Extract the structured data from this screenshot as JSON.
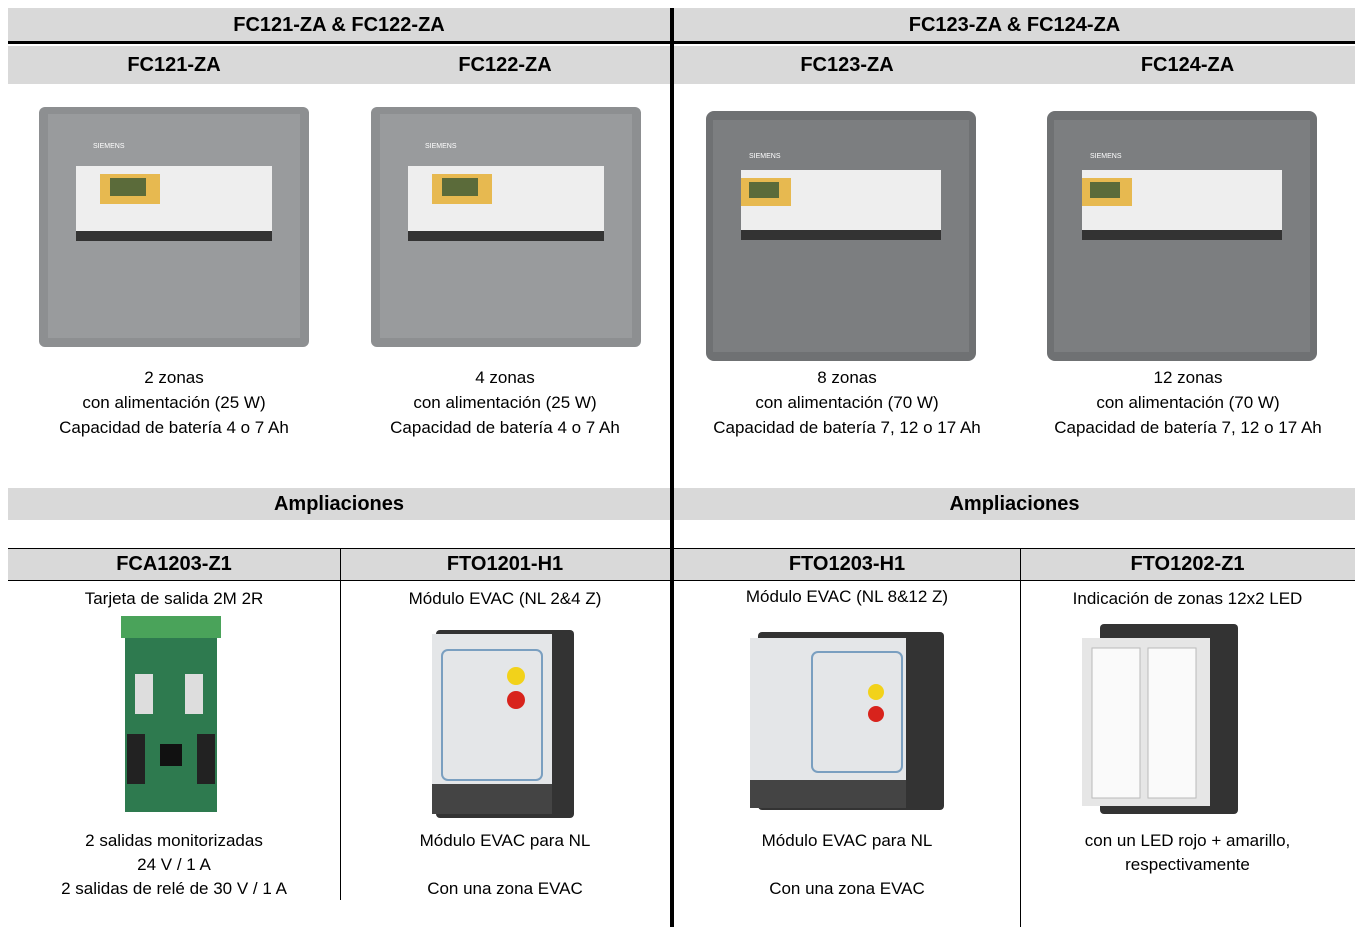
{
  "sections": [
    {
      "title": "FC121-ZA & FC122-ZA",
      "models": [
        {
          "name": "FC121-ZA",
          "lines": [
            "2 zonas",
            "con alimentación (25 W)",
            "Capacidad de batería 4 o 7 Ah"
          ]
        },
        {
          "name": "FC122-ZA",
          "lines": [
            "4 zonas",
            "con alimentación (25 W)",
            "Capacidad de batería 4 o 7 Ah"
          ]
        }
      ],
      "expansions_title": "Ampliaciones",
      "expansions": [
        {
          "name": "FCA1203-Z1",
          "subtitle": "Tarjeta de salida 2M 2R",
          "lines": [
            "2 salidas monitorizadas",
            "24 V / 1 A",
            "2 salidas de relé de 30 V / 1 A"
          ]
        },
        {
          "name": "FTO1201-H1",
          "subtitle": "Módulo EVAC (NL 2&4 Z)",
          "lines": [
            "Módulo EVAC para NL",
            "Con una zona EVAC"
          ]
        }
      ]
    },
    {
      "title": "FC123-ZA & FC124-ZA",
      "models": [
        {
          "name": "FC123-ZA",
          "lines": [
            "8 zonas",
            "con alimentación (70 W)",
            "Capacidad de batería 7, 12 o 17 Ah"
          ]
        },
        {
          "name": "FC124-ZA",
          "lines": [
            "12 zonas",
            "con alimentación (70 W)",
            "Capacidad de batería 7, 12 o 17 Ah"
          ]
        }
      ],
      "expansions_title": "Ampliaciones",
      "expansions": [
        {
          "name": "FTO1203-H1",
          "subtitle": "Módulo EVAC (NL 8&12 Z)",
          "lines": [
            "Módulo EVAC para NL",
            "Con una zona EVAC"
          ]
        },
        {
          "name": "FTO1202-Z1",
          "subtitle": "Indicación de zonas 12x2 LED",
          "lines": [
            "con un LED rojo + amarillo, respectivamente"
          ]
        }
      ]
    }
  ]
}
